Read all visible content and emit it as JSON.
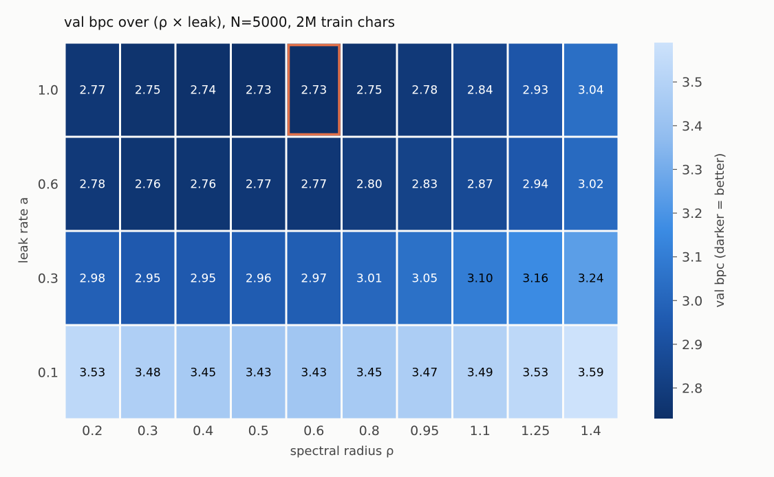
{
  "chart_data": {
    "type": "heatmap",
    "title": "val bpc over (ρ × leak), N=5000, 2M train chars",
    "xlabel": "spectral radius ρ",
    "ylabel": "leak rate a",
    "x_categories": [
      "0.2",
      "0.3",
      "0.4",
      "0.5",
      "0.6",
      "0.8",
      "0.95",
      "1.1",
      "1.25",
      "1.4"
    ],
    "y_categories": [
      "1.0",
      "0.6",
      "0.3",
      "0.1"
    ],
    "values": [
      [
        2.77,
        2.75,
        2.74,
        2.73,
        2.73,
        2.75,
        2.78,
        2.84,
        2.93,
        3.04
      ],
      [
        2.78,
        2.76,
        2.76,
        2.77,
        2.77,
        2.8,
        2.83,
        2.87,
        2.94,
        3.02
      ],
      [
        2.98,
        2.95,
        2.95,
        2.96,
        2.97,
        3.01,
        3.05,
        3.1,
        3.16,
        3.24
      ],
      [
        3.53,
        3.48,
        3.45,
        3.43,
        3.43,
        3.45,
        3.47,
        3.49,
        3.53,
        3.59
      ]
    ],
    "highlight": {
      "row": 0,
      "col": 4,
      "color": "#e0704a"
    },
    "colorbar": {
      "label": "val bpc (darker = better)",
      "range": [
        2.73,
        3.59
      ],
      "ticks": [
        "2.8",
        "2.9",
        "3.0",
        "3.1",
        "3.2",
        "3.3",
        "3.4",
        "3.5"
      ],
      "colormap": [
        "#0d3068",
        "#1e58ad",
        "#3b8be3",
        "#92bdef",
        "#cde2fb"
      ]
    },
    "grid": false,
    "legend": "colorbar-right"
  }
}
